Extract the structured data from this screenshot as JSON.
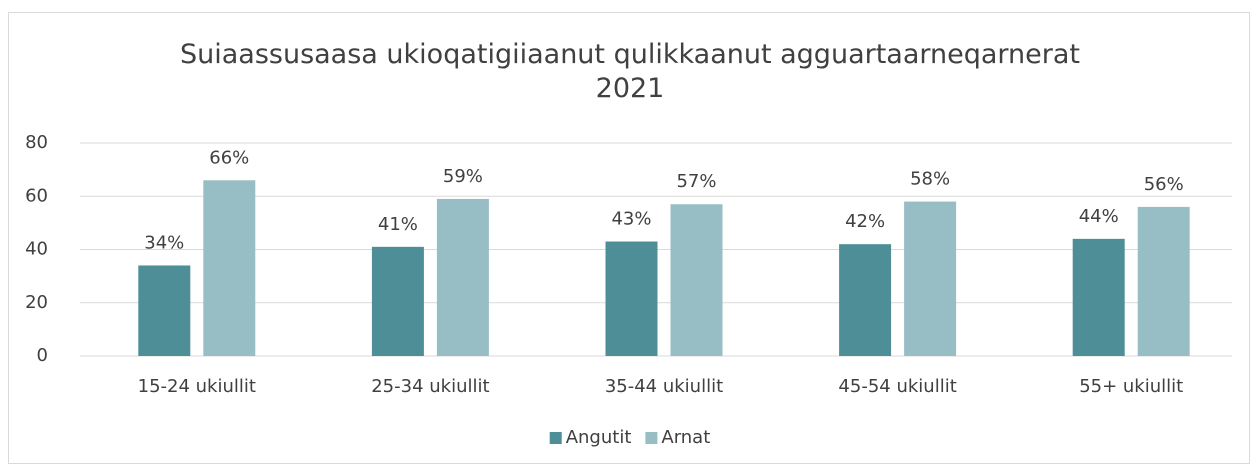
{
  "chart_data": {
    "type": "bar",
    "title": "Suiaassusaasa ukioqatigiiaanut qulikkaanut agguartaarneqarnerat 2021",
    "categories": [
      "15-24 ukiullit",
      "25-34 ukiullit",
      "35-44 ukiullit",
      "45-54 ukiullit",
      "55+ ukiullit"
    ],
    "series": [
      {
        "name": "Angutit",
        "color": "#4e8e97",
        "values": [
          34,
          41,
          43,
          42,
          44
        ],
        "value_labels": [
          "34%",
          "41%",
          "43%",
          "42%",
          "44%"
        ]
      },
      {
        "name": "Arnat",
        "color": "#98bec5",
        "values": [
          66,
          59,
          57,
          58,
          56
        ],
        "value_labels": [
          "66%",
          "59%",
          "57%",
          "58%",
          "56%"
        ]
      }
    ],
    "ylim": [
      0,
      80
    ],
    "yticks": [
      0,
      20,
      40,
      60,
      80
    ],
    "grid": true,
    "legend": "bottom"
  }
}
